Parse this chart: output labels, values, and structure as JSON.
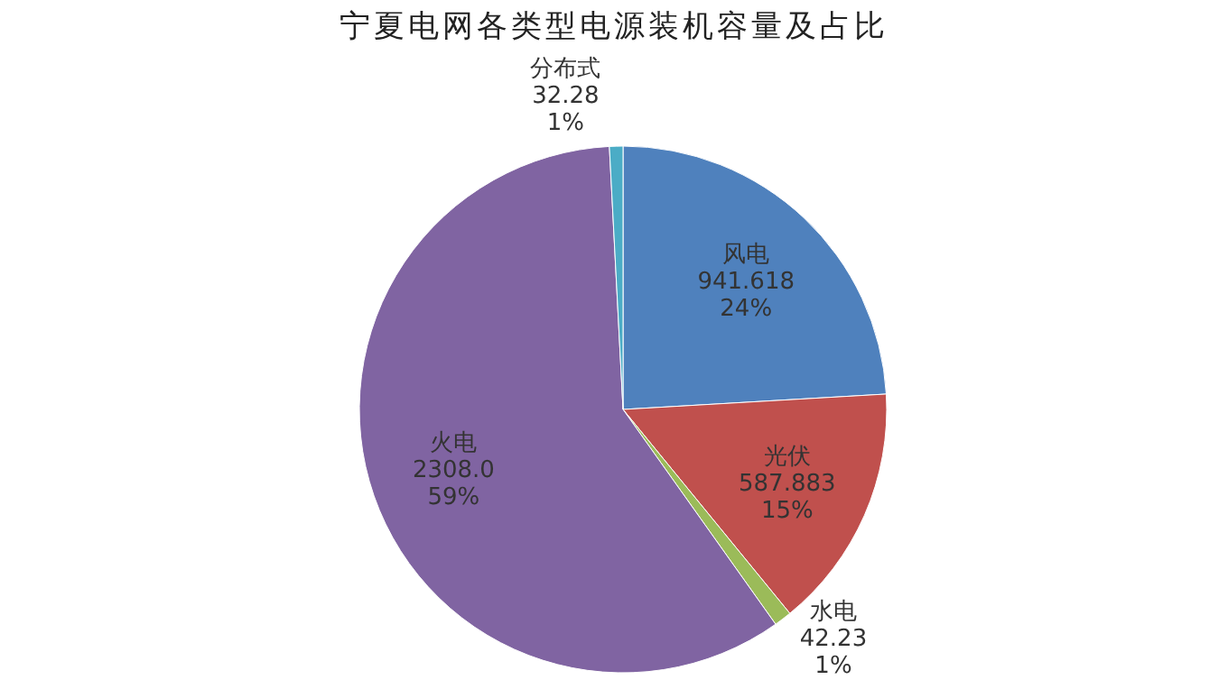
{
  "chart_data": {
    "type": "pie",
    "title": "宁夏电网各类型电源装机容量及占比",
    "categories": [
      "风电",
      "光伏",
      "水电",
      "火电",
      "分布式"
    ],
    "values": [
      941.618,
      587.883,
      42.23,
      2308.0,
      32.28
    ],
    "value_labels": [
      "941.618\n24%",
      "587.883\n15%",
      "42.23\n1%",
      "2308.0\n59%",
      "32.28\n1%"
    ],
    "colors": [
      "#4f81bd",
      "#c0504d",
      "#9bbb59",
      "#8064a2",
      "#4bacc6"
    ],
    "legend": false
  }
}
